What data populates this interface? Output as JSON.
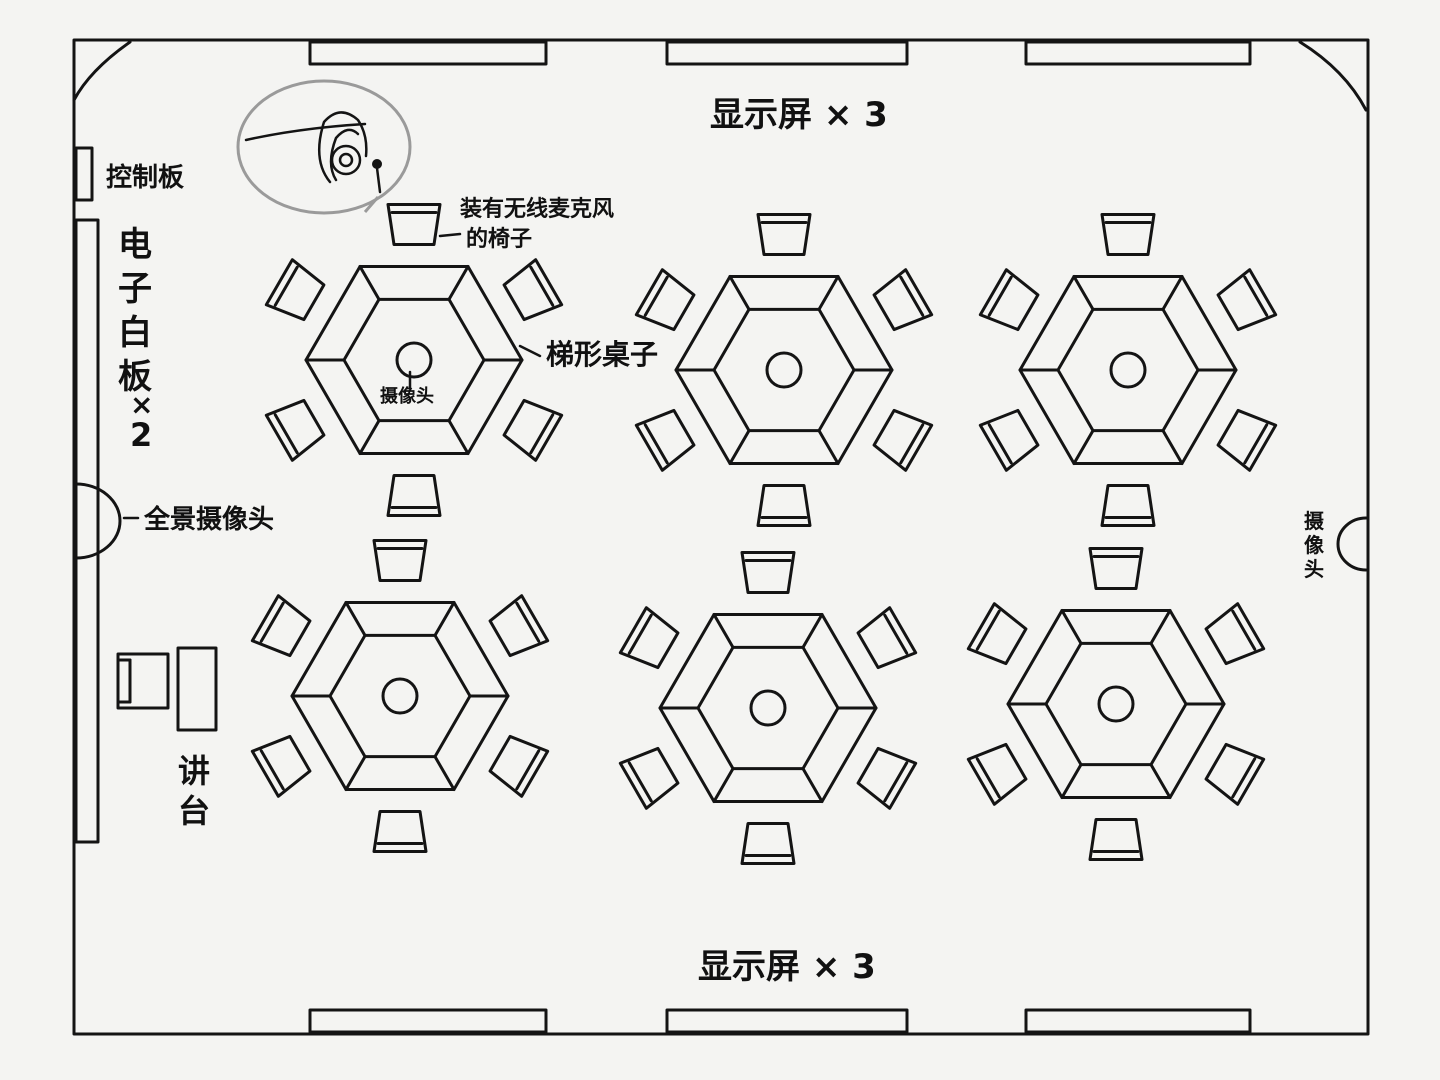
{
  "labels": {
    "top_screens": "显示屏 × 3",
    "bottom_screens": "显示屏 × 3",
    "control_panel": "控制板",
    "whiteboard_line1": "电",
    "whiteboard_line2": "子",
    "whiteboard_line3": "白",
    "whiteboard_line4": "板",
    "whiteboard_line5": "×",
    "whiteboard_line6": "2",
    "panorama_camera": "全景摄像头",
    "mic_chair_line1": "装有无线麦克风",
    "mic_chair_line2": "的椅子",
    "table_label": "梯形桌子",
    "table_camera": "摄像头",
    "right_camera_line1": "摄",
    "right_camera_line2": "像",
    "right_camera_line3": "头",
    "podium_line1": "讲",
    "podium_line2": "台"
  },
  "layout_info": {
    "tables": 6,
    "chairs_per_table": 6
  }
}
